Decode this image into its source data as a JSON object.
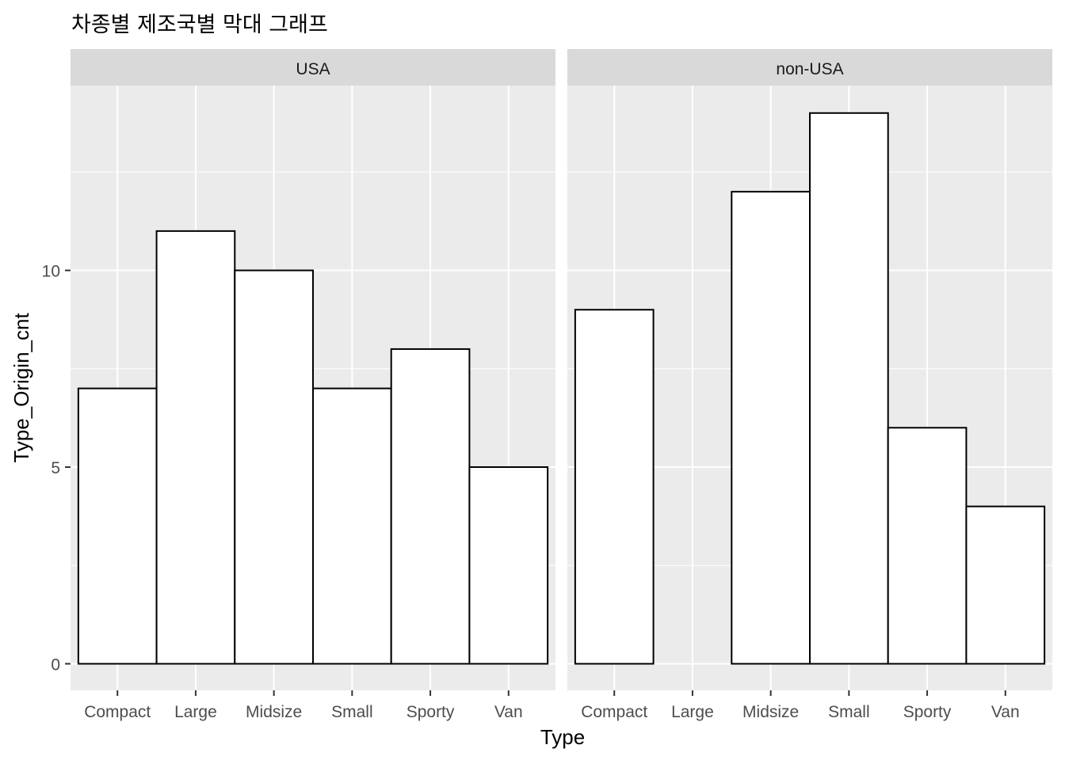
{
  "chart_data": {
    "type": "bar",
    "title": "차종별 제조국별 막대 그래프",
    "xlabel": "Type",
    "ylabel": "Type_Origin_cnt",
    "categories": [
      "Compact",
      "Large",
      "Midsize",
      "Small",
      "Sporty",
      "Van"
    ],
    "yticks": [
      0,
      5,
      10
    ],
    "ylim": [
      0,
      14
    ],
    "grid": true,
    "facets": [
      {
        "name": "USA",
        "values": [
          7,
          11,
          10,
          7,
          8,
          5
        ]
      },
      {
        "name": "non-USA",
        "values": [
          9,
          0,
          12,
          14,
          6,
          4
        ]
      }
    ],
    "colors": {
      "panel_background": "#ebebeb",
      "strip_background": "#d9d9d9",
      "grid": "#ffffff",
      "bar_fill": "#ffffff",
      "bar_outline": "#000000"
    }
  }
}
